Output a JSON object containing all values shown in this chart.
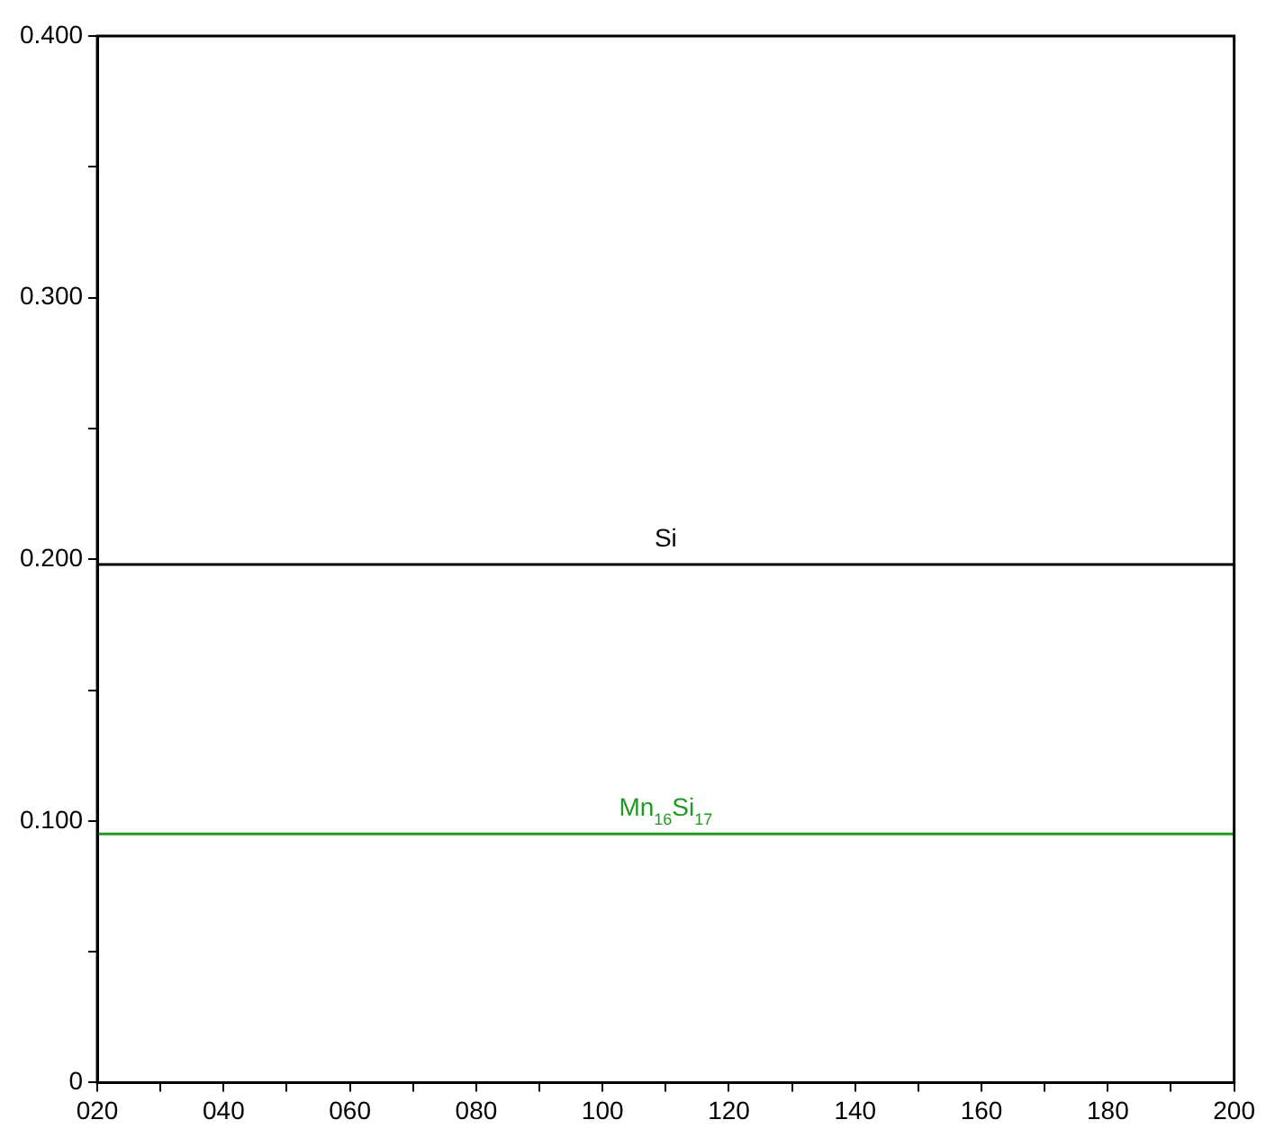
{
  "chart_data": {
    "type": "line",
    "x": [
      20,
      200
    ],
    "series": [
      {
        "name": "Si",
        "color": "#000000",
        "values": [
          0.198,
          0.198
        ]
      },
      {
        "name": "Mn$_{16}$Si$_{17}$",
        "color": "#229922",
        "values": [
          0.095,
          0.095
        ]
      }
    ],
    "xlim": [
      20,
      200
    ],
    "xticks": [
      {
        "value": 20,
        "label": "020"
      },
      {
        "value": 30,
        "label": null
      },
      {
        "value": 40,
        "label": "040"
      },
      {
        "value": 50,
        "label": null
      },
      {
        "value": 60,
        "label": "060"
      },
      {
        "value": 70,
        "label": null
      },
      {
        "value": 80,
        "label": "080"
      },
      {
        "value": 90,
        "label": null
      },
      100,
      {
        "value": 110,
        "label": null
      },
      120,
      {
        "value": 130,
        "label": null
      },
      140,
      {
        "value": 150,
        "label": null
      },
      160,
      {
        "value": 170,
        "label": null
      },
      180,
      {
        "value": 190,
        "label": null
      },
      200
    ],
    "ylim": [
      0,
      0.4
    ],
    "yticks": [
      0,
      {
        "value": 0.05,
        "label": null
      },
      {
        "value": 0.1,
        "label": "0.100"
      },
      {
        "value": 0.15,
        "label": null
      },
      {
        "value": 0.2,
        "label": "0.200"
      },
      {
        "value": 0.25,
        "label": null
      },
      {
        "value": 0.3,
        "label": "0.300"
      },
      {
        "value": 0.35,
        "label": null
      },
      {
        "value": 0.4,
        "label": "0.400"
      }
    ],
    "grid": false,
    "legend": false,
    "marker": "none",
    "line_style": "solid"
  }
}
